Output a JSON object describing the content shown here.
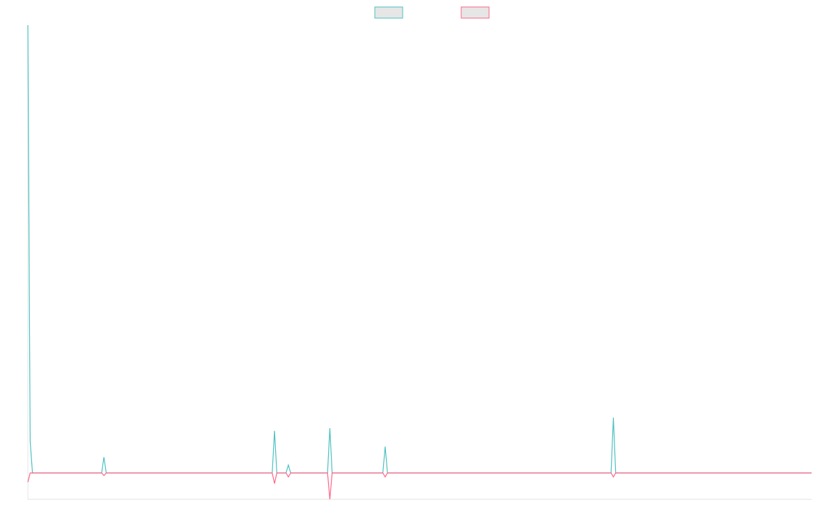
{
  "chart_data": {
    "type": "line",
    "x": [
      0,
      1,
      2,
      32,
      33,
      34,
      106,
      107,
      108,
      112,
      113,
      114,
      130,
      131,
      132,
      154,
      155,
      156,
      253,
      254,
      255,
      340
    ],
    "xlim": [
      0,
      340
    ],
    "ylim": [
      -10,
      170
    ],
    "series": [
      {
        "color": "#4bc0c0",
        "values": [
          170,
          12,
          0,
          0,
          6,
          0,
          0,
          16,
          0,
          0,
          3,
          0,
          0,
          17,
          0,
          0,
          10,
          0,
          0,
          21,
          0,
          0
        ]
      },
      {
        "color": "#ff6384",
        "values": [
          -3.5,
          0,
          0,
          0,
          -1,
          0,
          0,
          -4,
          0,
          0,
          -1.5,
          0,
          0,
          -10,
          0,
          0,
          -1.5,
          0,
          0,
          -1.5,
          0,
          0
        ]
      }
    ],
    "legend": "top"
  }
}
